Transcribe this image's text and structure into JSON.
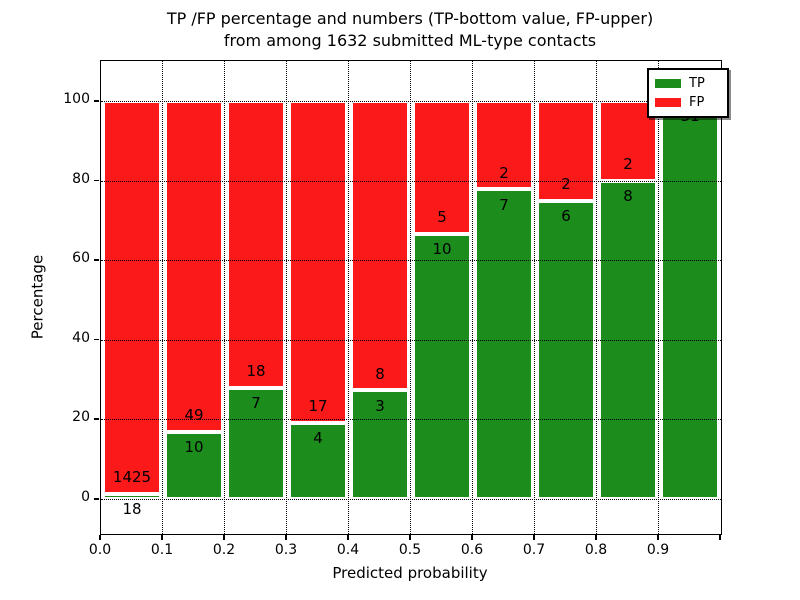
{
  "figure": {
    "title_line1": "TP /FP percentage and numbers (TP-bottom value, FP-upper)",
    "title_line2": "from among 1632 submitted ML-type contacts",
    "xlabel": "Predicted probability",
    "ylabel": "Percentage"
  },
  "legend": {
    "items": [
      {
        "label": "TP",
        "color": "#1c8c1c"
      },
      {
        "label": "FP",
        "color": "#fc1919"
      }
    ]
  },
  "colors": {
    "tp_green": "#1c8c1c",
    "fp_red": "#fc1919",
    "grid": "#000000",
    "background": "#ffffff"
  },
  "chart_data": {
    "type": "bar",
    "stacked": true,
    "normalized": "each bar totals 100%",
    "title": "TP /FP percentage and numbers (TP-bottom value, FP-upper) from among 1632 submitted ML-type contacts",
    "xlabel": "Predicted probability",
    "ylabel": "Percentage",
    "total_contacts": 1632,
    "bins": [
      "0.0-0.1",
      "0.1-0.2",
      "0.2-0.3",
      "0.3-0.4",
      "0.4-0.5",
      "0.5-0.6",
      "0.6-0.7",
      "0.7-0.8",
      "0.8-0.9",
      "0.9-1.0"
    ],
    "series": [
      {
        "name": "TP",
        "color": "#1c8c1c",
        "values": [
          18,
          10,
          7,
          4,
          3,
          10,
          7,
          6,
          8,
          31
        ]
      },
      {
        "name": "FP",
        "color": "#fc1919",
        "values": [
          1425,
          49,
          18,
          17,
          8,
          5,
          2,
          2,
          2,
          0
        ]
      }
    ],
    "tp_percent_heights": [
      1.25,
      16.95,
      28.0,
      19.05,
      27.27,
      66.67,
      77.78,
      75.0,
      80.0,
      100.0
    ],
    "x_tick_labels": [
      "0.0",
      "0.1",
      "0.2",
      "0.3",
      "0.4",
      "0.5",
      "0.6",
      "0.7",
      "0.8",
      "0.9"
    ],
    "y_tick_labels": [
      "0",
      "20",
      "40",
      "60",
      "80",
      "100"
    ],
    "y_ticks": [
      0,
      20,
      40,
      60,
      80,
      100
    ],
    "xlim": [
      0.0,
      1.0
    ],
    "ylim": [
      -9,
      110
    ],
    "grid": true,
    "legend_position": "upper right"
  }
}
